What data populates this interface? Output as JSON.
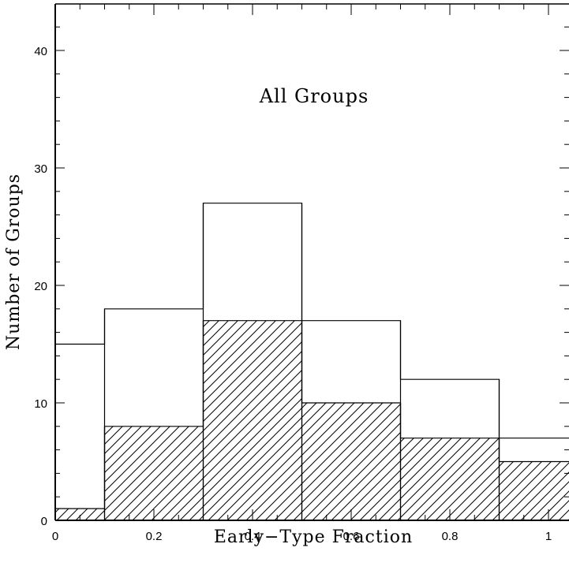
{
  "chart_data": {
    "type": "histogram",
    "title": "",
    "annotation": "All Groups",
    "xlabel": "Early−Type Fraction",
    "ylabel": "Number of Groups",
    "xlim": [
      0,
      1.05
    ],
    "ylim": [
      0,
      45
    ],
    "x_ticks": [
      "0",
      "0.2",
      "0.4",
      "0.6",
      "0.8",
      "1"
    ],
    "y_ticks": [
      "0",
      "10",
      "20",
      "30",
      "40"
    ],
    "bin_edges": [
      0,
      0.1,
      0.3,
      0.5,
      0.7,
      0.9,
      1.05
    ],
    "series": [
      {
        "style": "outline",
        "values": [
          15,
          18,
          27,
          17,
          12,
          7
        ]
      },
      {
        "style": "hatched",
        "values": [
          1,
          8,
          17,
          10,
          7,
          5
        ]
      }
    ],
    "grid": false
  }
}
